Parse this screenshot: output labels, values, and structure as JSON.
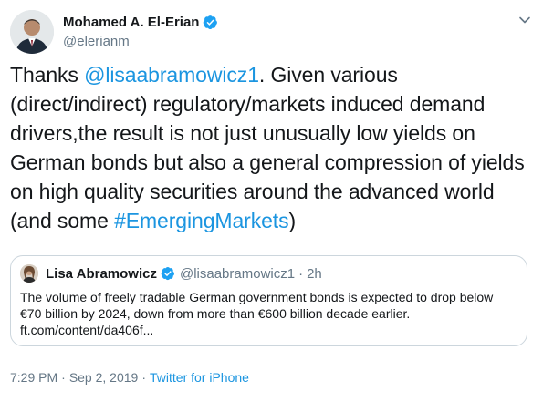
{
  "author": {
    "name": "Mohamed A. El-Erian",
    "handle": "@elerianm",
    "verified": true
  },
  "tweet": {
    "text_before_mention": "Thanks ",
    "mention": "@lisaabramowicz1",
    "text_after_mention": ". Given various (direct/indirect) regulatory/markets induced demand drivers,the result is not just unusually low yields on German bonds but also a general compression of yields on high quality securities around the advanced world (and some ",
    "hashtag": "#EmergingMarkets",
    "text_end": ")"
  },
  "quote": {
    "name": "Lisa Abramowicz",
    "handle": "@lisaabramowicz1",
    "dot": "·",
    "time": "2h",
    "verified": true,
    "body": "The volume of freely tradable German government bonds is expected to drop below €70 billion by 2024, down from more than €600 billion decade earlier.",
    "link": "ft.com/content/da406f..."
  },
  "meta": {
    "time": "7:29 PM",
    "sep": "·",
    "date": "Sep 2, 2019",
    "sep2": "·",
    "source": "Twitter for iPhone"
  },
  "icons": {
    "verified": "verified-badge-icon",
    "caret": "chevron-down-icon"
  },
  "colors": {
    "link": "#1b95e0",
    "muted": "#657786",
    "verified": "#1da1f2",
    "border": "#ccd6dd"
  }
}
